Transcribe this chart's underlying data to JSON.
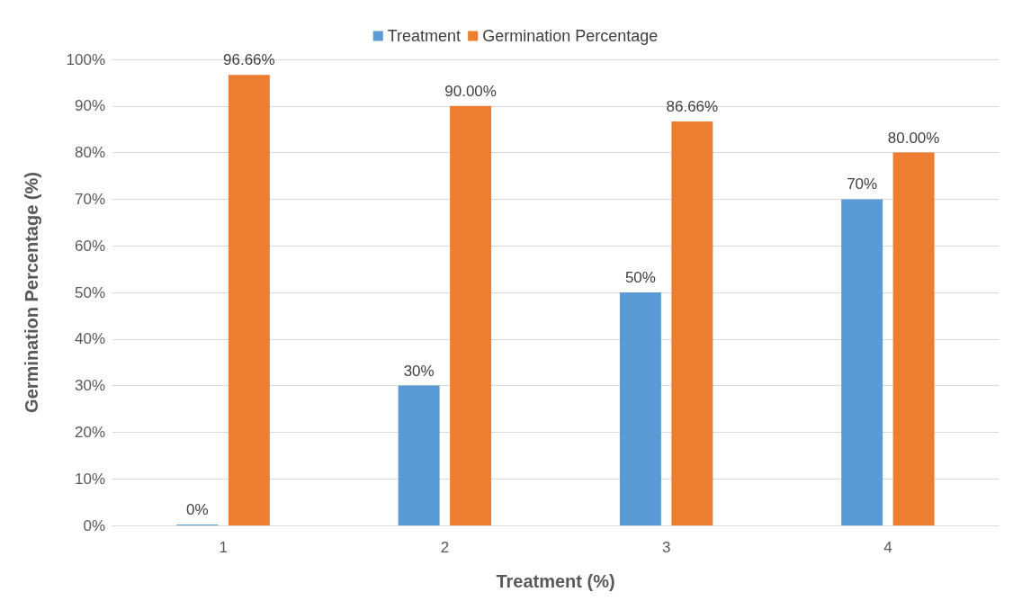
{
  "chart_data": {
    "type": "bar",
    "xlabel": "Treatment (%)",
    "ylabel": "Germination Percentage (%)",
    "categories": [
      "1",
      "2",
      "3",
      "4"
    ],
    "series": [
      {
        "name": "Treatment",
        "color": "#5b9bd5",
        "values": [
          0,
          30,
          50,
          70
        ],
        "value_labels": [
          "0%",
          "30%",
          "50%",
          "70%"
        ]
      },
      {
        "name": "Germination Percentage",
        "color": "#ed7d31",
        "values": [
          96.66,
          90,
          86.66,
          80
        ],
        "value_labels": [
          "96.66%",
          "90.00%",
          "86.66%",
          "80.00%"
        ]
      }
    ],
    "ylim": [
      0,
      100
    ],
    "yticks": [
      {
        "value": 0,
        "label": "0%"
      },
      {
        "value": 10,
        "label": "10%"
      },
      {
        "value": 20,
        "label": "20%"
      },
      {
        "value": 30,
        "label": "30%"
      },
      {
        "value": 40,
        "label": "40%"
      },
      {
        "value": 50,
        "label": "50%"
      },
      {
        "value": 60,
        "label": "60%"
      },
      {
        "value": 70,
        "label": "70%"
      },
      {
        "value": 80,
        "label": "80%"
      },
      {
        "value": 90,
        "label": "90%"
      },
      {
        "value": 100,
        "label": "100%"
      }
    ],
    "grid": "y",
    "legend": "top"
  }
}
